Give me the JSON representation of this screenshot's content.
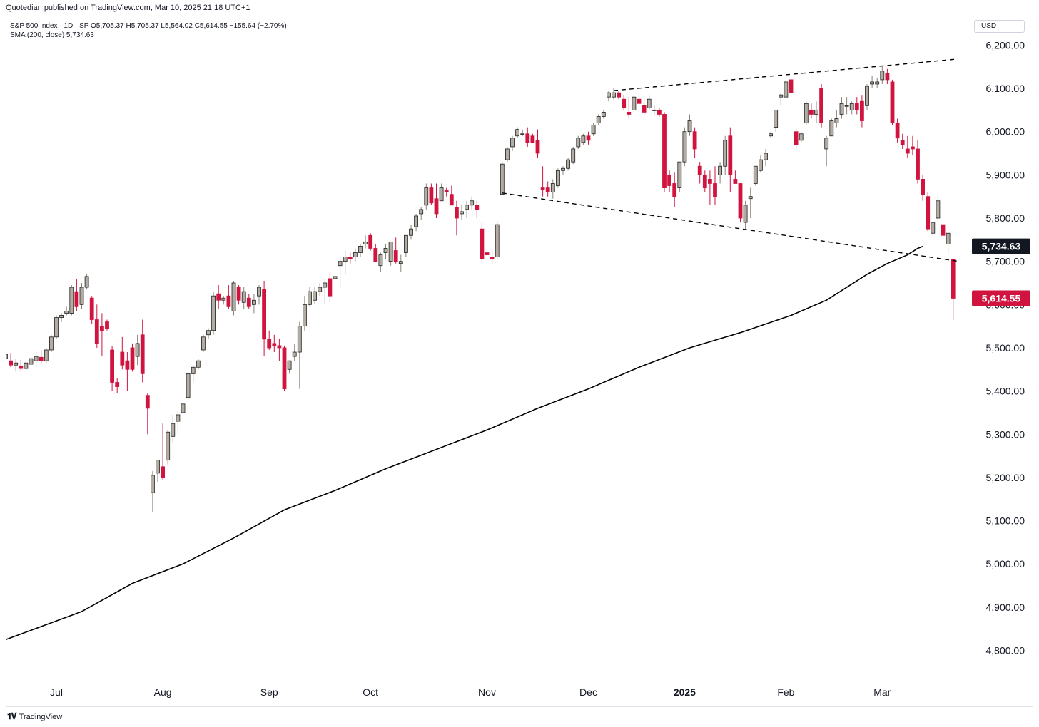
{
  "header": {
    "published": "Quotedian published on TradingView.com, Mar 10, 2025 21:18 UTC+1",
    "ohlc_line": "S&P 500 Index · 1D · SP  O5,705.37  H5,705.37  L5,564.02  C5,614.55  −155.64 (−2.70%)",
    "sma_line": "SMA (200, close)  5,734.63",
    "currency": "USD"
  },
  "footer": {
    "brand": "TradingView"
  },
  "colors": {
    "up_body": "#b2aca2",
    "down_body": "#d1143f",
    "outline": "#222222",
    "sma": "#000000",
    "price_label": "#d1143f",
    "sma_label": "#131722"
  },
  "chart_data": {
    "type": "candlestick",
    "title": "S&P 500 Index",
    "interval": "1D",
    "y_range": [
      4730,
      6260
    ],
    "y_ticks": [
      4800,
      4900,
      5000,
      5100,
      5200,
      5300,
      5400,
      5500,
      5600,
      5700,
      5800,
      5900,
      6000,
      6100,
      6200
    ],
    "y_tick_labels": [
      "4,800.00",
      "4,900.00",
      "5,000.00",
      "5,100.00",
      "5,200.00",
      "5,300.00",
      "5,400.00",
      "5,500.00",
      "5,600.00",
      "5,700.00",
      "5,800.00",
      "5,900.00",
      "6,000.00",
      "6,100.00",
      "6,200.00"
    ],
    "time_labels": [
      {
        "label": "Jul",
        "bar": 10
      },
      {
        "label": "Aug",
        "bar": 31
      },
      {
        "label": "Sep",
        "bar": 52
      },
      {
        "label": "Oct",
        "bar": 72
      },
      {
        "label": "Nov",
        "bar": 95
      },
      {
        "label": "Dec",
        "bar": 115
      },
      {
        "label": "2025",
        "bar": 134,
        "bold": true
      },
      {
        "label": "Feb",
        "bar": 154
      },
      {
        "label": "Mar",
        "bar": 173
      }
    ],
    "candles": [
      [
        5475,
        5490,
        5460,
        5485
      ],
      [
        5470,
        5488,
        5455,
        5460
      ],
      [
        5460,
        5475,
        5445,
        5465
      ],
      [
        5458,
        5472,
        5447,
        5452
      ],
      [
        5452,
        5470,
        5445,
        5465
      ],
      [
        5462,
        5480,
        5455,
        5475
      ],
      [
        5470,
        5492,
        5455,
        5480
      ],
      [
        5478,
        5495,
        5465,
        5470
      ],
      [
        5470,
        5500,
        5465,
        5495
      ],
      [
        5495,
        5530,
        5490,
        5525
      ],
      [
        5525,
        5575,
        5520,
        5570
      ],
      [
        5570,
        5580,
        5560,
        5575
      ],
      [
        5580,
        5595,
        5575,
        5585
      ],
      [
        5580,
        5645,
        5575,
        5640
      ],
      [
        5630,
        5660,
        5585,
        5595
      ],
      [
        5600,
        5650,
        5590,
        5640
      ],
      [
        5640,
        5670,
        5635,
        5665
      ],
      [
        5615,
        5620,
        5555,
        5565
      ],
      [
        5565,
        5600,
        5500,
        5510
      ],
      [
        5550,
        5580,
        5480,
        5540
      ],
      [
        5560,
        5565,
        5540,
        5545
      ],
      [
        5495,
        5505,
        5400,
        5420
      ],
      [
        5420,
        5430,
        5395,
        5410
      ],
      [
        5490,
        5525,
        5450,
        5460
      ],
      [
        5470,
        5490,
        5400,
        5450
      ],
      [
        5500,
        5510,
        5445,
        5450
      ],
      [
        5480,
        5530,
        5460,
        5510
      ],
      [
        5530,
        5565,
        5420,
        5440
      ],
      [
        5390,
        5395,
        5300,
        5360
      ],
      [
        5165,
        5215,
        5120,
        5205
      ],
      [
        5210,
        5240,
        5190,
        5240
      ],
      [
        5225,
        5325,
        5195,
        5200
      ],
      [
        5240,
        5310,
        5230,
        5305
      ],
      [
        5295,
        5345,
        5280,
        5325
      ],
      [
        5330,
        5355,
        5300,
        5345
      ],
      [
        5350,
        5380,
        5340,
        5370
      ],
      [
        5385,
        5445,
        5380,
        5440
      ],
      [
        5440,
        5460,
        5420,
        5455
      ],
      [
        5455,
        5475,
        5450,
        5470
      ],
      [
        5495,
        5530,
        5490,
        5525
      ],
      [
        5530,
        5545,
        5520,
        5540
      ],
      [
        5540,
        5630,
        5530,
        5620
      ],
      [
        5625,
        5645,
        5590,
        5610
      ],
      [
        5610,
        5620,
        5600,
        5615
      ],
      [
        5620,
        5645,
        5590,
        5595
      ],
      [
        5585,
        5655,
        5575,
        5650
      ],
      [
        5640,
        5645,
        5600,
        5610
      ],
      [
        5605,
        5640,
        5590,
        5630
      ],
      [
        5615,
        5625,
        5590,
        5595
      ],
      [
        5600,
        5625,
        5580,
        5610
      ],
      [
        5620,
        5645,
        5600,
        5640
      ],
      [
        5635,
        5655,
        5480,
        5520
      ],
      [
        5520,
        5540,
        5495,
        5500
      ],
      [
        5510,
        5530,
        5490,
        5505
      ],
      [
        5505,
        5520,
        5470,
        5500
      ],
      [
        5500,
        5505,
        5400,
        5405
      ],
      [
        5450,
        5470,
        5440,
        5470
      ],
      [
        5480,
        5510,
        5470,
        5490
      ],
      [
        5490,
        5560,
        5405,
        5550
      ],
      [
        5550,
        5620,
        5540,
        5600
      ],
      [
        5600,
        5640,
        5595,
        5630
      ],
      [
        5610,
        5640,
        5600,
        5630
      ],
      [
        5630,
        5650,
        5620,
        5640
      ],
      [
        5640,
        5660,
        5600,
        5650
      ],
      [
        5660,
        5675,
        5605,
        5620
      ],
      [
        5660,
        5680,
        5640,
        5665
      ],
      [
        5690,
        5710,
        5640,
        5700
      ],
      [
        5700,
        5725,
        5670,
        5710
      ],
      [
        5710,
        5720,
        5695,
        5705
      ],
      [
        5710,
        5730,
        5700,
        5720
      ],
      [
        5720,
        5740,
        5710,
        5735
      ],
      [
        5740,
        5760,
        5730,
        5745
      ],
      [
        5760,
        5765,
        5725,
        5730
      ],
      [
        5730,
        5740,
        5700,
        5700
      ],
      [
        5690,
        5720,
        5675,
        5715
      ],
      [
        5720,
        5740,
        5705,
        5730
      ],
      [
        5700,
        5745,
        5690,
        5745
      ],
      [
        5725,
        5755,
        5695,
        5700
      ],
      [
        5695,
        5715,
        5675,
        5700
      ],
      [
        5720,
        5760,
        5710,
        5760
      ],
      [
        5760,
        5785,
        5750,
        5775
      ],
      [
        5780,
        5810,
        5770,
        5805
      ],
      [
        5810,
        5825,
        5795,
        5820
      ],
      [
        5830,
        5880,
        5820,
        5870
      ],
      [
        5870,
        5880,
        5830,
        5835
      ],
      [
        5845,
        5880,
        5800,
        5810
      ],
      [
        5840,
        5880,
        5840,
        5870
      ],
      [
        5865,
        5870,
        5850,
        5860
      ],
      [
        5855,
        5875,
        5830,
        5830
      ],
      [
        5825,
        5840,
        5760,
        5800
      ],
      [
        5810,
        5830,
        5795,
        5815
      ],
      [
        5820,
        5840,
        5800,
        5830
      ],
      [
        5830,
        5850,
        5820,
        5840
      ],
      [
        5830,
        5840,
        5800,
        5820
      ],
      [
        5775,
        5790,
        5700,
        5705
      ],
      [
        5720,
        5730,
        5690,
        5715
      ],
      [
        5710,
        5725,
        5695,
        5705
      ],
      [
        5710,
        5790,
        5705,
        5785
      ],
      [
        5855,
        5930,
        5855,
        5925
      ],
      [
        5935,
        5965,
        5930,
        5960
      ],
      [
        5965,
        5990,
        5955,
        5985
      ],
      [
        5990,
        6010,
        5985,
        6005
      ],
      [
        5995,
        6005,
        5990,
        5995
      ],
      [
        5995,
        6010,
        5965,
        5975
      ],
      [
        5990,
        5995,
        5975,
        5975
      ],
      [
        5980,
        6005,
        5940,
        5950
      ],
      [
        5870,
        5920,
        5850,
        5865
      ],
      [
        5870,
        5885,
        5850,
        5860
      ],
      [
        5860,
        5890,
        5845,
        5880
      ],
      [
        5875,
        5915,
        5870,
        5910
      ],
      [
        5910,
        5920,
        5900,
        5915
      ],
      [
        5915,
        5940,
        5910,
        5935
      ],
      [
        5930,
        5965,
        5925,
        5960
      ],
      [
        5965,
        5990,
        5960,
        5985
      ],
      [
        5975,
        5995,
        5970,
        5990
      ],
      [
        5990,
        6000,
        5970,
        5980
      ],
      [
        5995,
        6020,
        5990,
        6015
      ],
      [
        6020,
        6040,
        6015,
        6035
      ],
      [
        6035,
        6050,
        6030,
        6045
      ],
      [
        6080,
        6095,
        6070,
        6090
      ],
      [
        6080,
        6100,
        6075,
        6090
      ],
      [
        6090,
        6095,
        6075,
        6080
      ],
      [
        6075,
        6085,
        6050,
        6055
      ],
      [
        6045,
        6080,
        6030,
        6040
      ],
      [
        6050,
        6085,
        6045,
        6080
      ],
      [
        6075,
        6085,
        6050,
        6065
      ],
      [
        6060,
        6080,
        6040,
        6045
      ],
      [
        6055,
        6085,
        6050,
        6075
      ],
      [
        6050,
        6060,
        6040,
        6050
      ],
      [
        6050,
        6055,
        6035,
        6040
      ],
      [
        6040,
        6045,
        5860,
        5870
      ],
      [
        5900,
        5910,
        5860,
        5875
      ],
      [
        5880,
        5905,
        5825,
        5850
      ],
      [
        5870,
        5930,
        5860,
        5930
      ],
      [
        5930,
        6010,
        5920,
        6000
      ],
      [
        6000,
        6040,
        5990,
        6025
      ],
      [
        6000,
        6010,
        5940,
        5960
      ],
      [
        5920,
        5930,
        5880,
        5900
      ],
      [
        5900,
        5910,
        5860,
        5870
      ],
      [
        5890,
        5910,
        5830,
        5880
      ],
      [
        5880,
        5920,
        5830,
        5850
      ],
      [
        5900,
        5930,
        5880,
        5920
      ],
      [
        5920,
        5990,
        5900,
        5980
      ],
      [
        5990,
        6010,
        5860,
        5900
      ],
      [
        5890,
        5910,
        5880,
        5880
      ],
      [
        5880,
        5880,
        5790,
        5800
      ],
      [
        5790,
        5840,
        5775,
        5830
      ],
      [
        5845,
        5870,
        5800,
        5850
      ],
      [
        5880,
        5920,
        5875,
        5920
      ],
      [
        5910,
        5945,
        5905,
        5935
      ],
      [
        5935,
        5960,
        5920,
        5950
      ],
      [
        5990,
        6000,
        5985,
        5995
      ],
      [
        6010,
        6050,
        6000,
        6050
      ],
      [
        6080,
        6090,
        6060,
        6085
      ],
      [
        6080,
        6125,
        6080,
        6115
      ],
      [
        6120,
        6130,
        6080,
        6090
      ],
      [
        6000,
        6010,
        5960,
        5970
      ],
      [
        5980,
        6000,
        5975,
        5995
      ],
      [
        6020,
        6070,
        6015,
        6065
      ],
      [
        6050,
        6065,
        6030,
        6040
      ],
      [
        6040,
        6070,
        6020,
        6050
      ],
      [
        6100,
        6110,
        6010,
        6020
      ],
      [
        5960,
        5990,
        5920,
        5985
      ],
      [
        5990,
        6030,
        5990,
        6025
      ],
      [
        6020,
        6050,
        6010,
        6030
      ],
      [
        6040,
        6080,
        6030,
        6065
      ],
      [
        6060,
        6080,
        6040,
        6060
      ],
      [
        6050,
        6070,
        6040,
        6065
      ],
      [
        6065,
        6080,
        6040,
        6050
      ],
      [
        6070,
        6085,
        6010,
        6025
      ],
      [
        6060,
        6110,
        6050,
        6105
      ],
      [
        6110,
        6130,
        6100,
        6115
      ],
      [
        6110,
        6125,
        6100,
        6115
      ],
      [
        6120,
        6150,
        6110,
        6140
      ],
      [
        6135,
        6145,
        6110,
        6120
      ],
      [
        6115,
        6120,
        6015,
        6020
      ],
      [
        6020,
        6030,
        5975,
        5985
      ],
      [
        5980,
        5995,
        5960,
        5970
      ],
      [
        5960,
        5990,
        5940,
        5950
      ],
      [
        5965,
        5990,
        5945,
        5960
      ],
      [
        5960,
        5980,
        5880,
        5890
      ],
      [
        5890,
        5900,
        5840,
        5855
      ],
      [
        5850,
        5860,
        5770,
        5775
      ],
      [
        5765,
        5790,
        5760,
        5790
      ],
      [
        5800,
        5855,
        5790,
        5840
      ],
      [
        5785,
        5790,
        5750,
        5760
      ],
      [
        5740,
        5770,
        5715,
        5765
      ],
      [
        5705,
        5705,
        5564,
        5614.55
      ]
    ],
    "sma200": {
      "label": "SMA (200, close)",
      "last": 5734.63,
      "points": [
        [
          0,
          4825
        ],
        [
          15,
          4890
        ],
        [
          25,
          4955
        ],
        [
          35,
          5000
        ],
        [
          45,
          5060
        ],
        [
          55,
          5125
        ],
        [
          65,
          5170
        ],
        [
          75,
          5220
        ],
        [
          85,
          5265
        ],
        [
          95,
          5310
        ],
        [
          105,
          5360
        ],
        [
          115,
          5405
        ],
        [
          125,
          5455
        ],
        [
          135,
          5500
        ],
        [
          145,
          5535
        ],
        [
          155,
          5575
        ],
        [
          162,
          5610
        ],
        [
          166,
          5640
        ],
        [
          170,
          5670
        ],
        [
          174,
          5695
        ],
        [
          178,
          5715
        ],
        [
          180,
          5730
        ],
        [
          181,
          5734.63
        ]
      ]
    },
    "trendlines": [
      {
        "style": "dashed",
        "from": [
          120,
          6095
        ],
        "to": [
          188,
          6168
        ]
      },
      {
        "style": "dashed",
        "from": [
          98,
          5858
        ],
        "to": [
          188,
          5700
        ]
      }
    ],
    "price_labels": {
      "sma": {
        "value": 5734.63,
        "text": "5,734.63"
      },
      "last": {
        "value": 5614.55,
        "text": "5,614.55"
      }
    }
  }
}
